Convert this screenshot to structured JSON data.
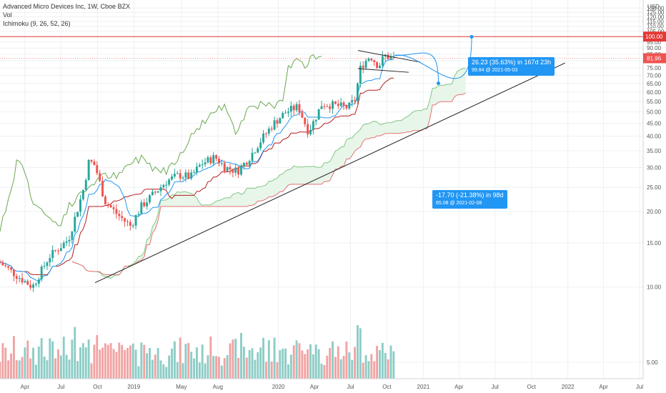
{
  "header": {
    "symbol_line": "Advanced Micro Devices Inc, 1W, Cboe BZX",
    "volume_label": "Vol",
    "ichimoku_label": "Ichimoku (9, 26, 52, 26)"
  },
  "currency": "USD",
  "colors": {
    "up": "#26a69a",
    "down": "#ef5350",
    "vol_up": "#8dcdc6",
    "vol_down": "#f1a3a3",
    "conversion": "#2196f3",
    "base": "#b71c1c",
    "lagging": "#6aa84f",
    "span_a": "#81c784",
    "span_b": "#e57373",
    "cloud": "#e8f5e9",
    "level": "#e53935",
    "callout": "#2196f3",
    "trend": "#222222"
  },
  "chart_data": {
    "type": "candlestick",
    "title": "Advanced Micro Devices Inc, 1W, Cboe BZX",
    "y_axis": {
      "scale": "log",
      "ylim": [
        4.3,
        140
      ],
      "ticks": [
        "5.00",
        "10.00",
        "15.00",
        "20.00",
        "25.00",
        "30.00",
        "35.00",
        "40.00",
        "45.00",
        "50.00",
        "55.00",
        "60.00",
        "65.00",
        "70.00",
        "75.00",
        "80.00",
        "85.00",
        "90.00",
        "95.00",
        "100.00",
        "105.00",
        "110.00",
        "115.00",
        "120.00",
        "125.00",
        "130.00"
      ]
    },
    "x_axis": {
      "range": [
        "2018-01-28",
        "2022-07-10"
      ],
      "ticks": [
        {
          "label": "Apr",
          "date": "2018-04-01"
        },
        {
          "label": "Jul",
          "date": "2018-07-01"
        },
        {
          "label": "Oct",
          "date": "2018-10-01"
        },
        {
          "label": "2019",
          "date": "2019-01-01"
        },
        {
          "label": "May",
          "date": "2019-05-01"
        },
        {
          "label": "Aug",
          "date": "2019-08-01"
        },
        {
          "label": "2020",
          "date": "2020-01-01"
        },
        {
          "label": "Apr",
          "date": "2020-04-01"
        },
        {
          "label": "Jul",
          "date": "2020-07-01"
        },
        {
          "label": "Oct",
          "date": "2020-10-01"
        },
        {
          "label": "2021",
          "date": "2021-01-01"
        },
        {
          "label": "Apr",
          "date": "2021-04-01"
        },
        {
          "label": "Jul",
          "date": "2021-07-01"
        },
        {
          "label": "Oct",
          "date": "2021-10-01"
        },
        {
          "label": "2022",
          "date": "2022-01-01"
        },
        {
          "label": "Apr",
          "date": "2022-04-01"
        },
        {
          "label": "Jul",
          "date": "2022-07-01"
        }
      ]
    },
    "close_anchors": [
      [
        "2018-01-28",
        12.5
      ],
      [
        "2018-03-15",
        11.0
      ],
      [
        "2018-04-20",
        10.0
      ],
      [
        "2018-06-01",
        13.2
      ],
      [
        "2018-07-20",
        15.5
      ],
      [
        "2018-08-25",
        24.0
      ],
      [
        "2018-09-10",
        32.0
      ],
      [
        "2018-09-25",
        30.5
      ],
      [
        "2018-10-20",
        22.0
      ],
      [
        "2018-11-20",
        19.5
      ],
      [
        "2018-12-24",
        17.5
      ],
      [
        "2019-01-20",
        21.0
      ],
      [
        "2019-02-20",
        23.5
      ],
      [
        "2019-03-25",
        26.5
      ],
      [
        "2019-04-25",
        28.0
      ],
      [
        "2019-05-25",
        27.5
      ],
      [
        "2019-06-20",
        31.0
      ],
      [
        "2019-07-25",
        33.0
      ],
      [
        "2019-08-20",
        30.0
      ],
      [
        "2019-09-20",
        29.0
      ],
      [
        "2019-10-20",
        33.0
      ],
      [
        "2019-11-20",
        39.0
      ],
      [
        "2019-12-20",
        45.0
      ],
      [
        "2020-01-20",
        50.0
      ],
      [
        "2020-02-20",
        52.5
      ],
      [
        "2020-03-16",
        42.0
      ],
      [
        "2020-03-25",
        44.0
      ],
      [
        "2020-04-20",
        54.0
      ],
      [
        "2020-05-25",
        53.0
      ],
      [
        "2020-06-25",
        52.0
      ],
      [
        "2020-07-12",
        56.0
      ],
      [
        "2020-07-27",
        76.0
      ],
      [
        "2020-08-20",
        84.0
      ],
      [
        "2020-09-10",
        76.0
      ],
      [
        "2020-09-25",
        84.0
      ],
      [
        "2020-10-12",
        82.0
      ],
      [
        "2020-10-20",
        81.96
      ]
    ],
    "last_price": "81.96",
    "level_line": {
      "value": 100.0,
      "label": "100.00"
    },
    "trendlines": [
      {
        "name": "support",
        "from": [
          "2018-09-25",
          10.4
        ],
        "to": [
          "2021-12-25",
          78.5
        ]
      },
      {
        "name": "flag-upper",
        "from": [
          "2020-07-20",
          88.0
        ],
        "to": [
          "2020-12-25",
          79.0
        ]
      },
      {
        "name": "flag-lower",
        "from": [
          "2020-07-20",
          74.5
        ],
        "to": [
          "2020-11-25",
          72.0
        ]
      }
    ],
    "projections": [
      {
        "text": "26.23 (35.63%) in 167d 23h",
        "sub": "99.84 @ 2021-05-03",
        "target": [
          "2021-05-03",
          99.84
        ]
      },
      {
        "text": "-17.70 (-21.38%) in 98d",
        "sub": "65.08 @ 2021-02-08",
        "target": [
          "2021-02-08",
          65.08
        ]
      }
    ]
  }
}
